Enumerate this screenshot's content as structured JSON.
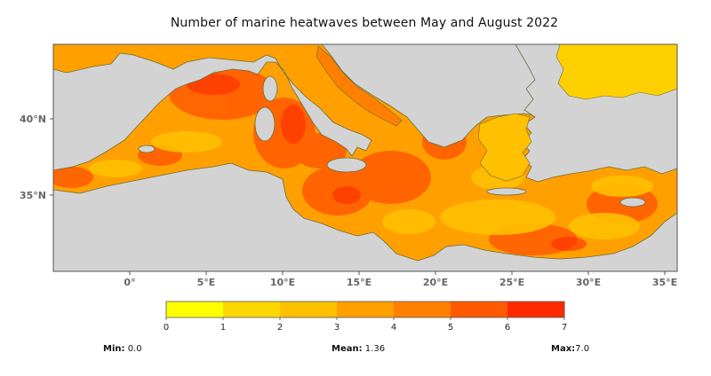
{
  "title": "Number of marine heatwaves between May and August 2022",
  "axes": {
    "lat_ticks": [
      "40°N",
      "35°N"
    ],
    "lon_ticks": [
      "0°",
      "5°E",
      "10°E",
      "15°E",
      "20°E",
      "25°E",
      "30°E",
      "35°E"
    ]
  },
  "colorbar": {
    "ticks": [
      "0",
      "1",
      "2",
      "3",
      "4",
      "5",
      "6",
      "7"
    ],
    "colors": [
      "#ffff00",
      "#ffd700",
      "#ffc000",
      "#ff9f00",
      "#ff8000",
      "#ff5a00",
      "#ff2a00"
    ]
  },
  "stats": {
    "min_label": "Min:",
    "min_value": "0.0",
    "mean_label": "Mean:",
    "mean_value": "1.36",
    "max_label": "Max:",
    "max_value": "7.0"
  },
  "colors": {
    "land": "#d3d3d3",
    "sea_base": "#ffa000",
    "sea_hot": "#ff5a00",
    "sea_cool": "#ffc000",
    "coast": "#6b6b3a"
  }
}
